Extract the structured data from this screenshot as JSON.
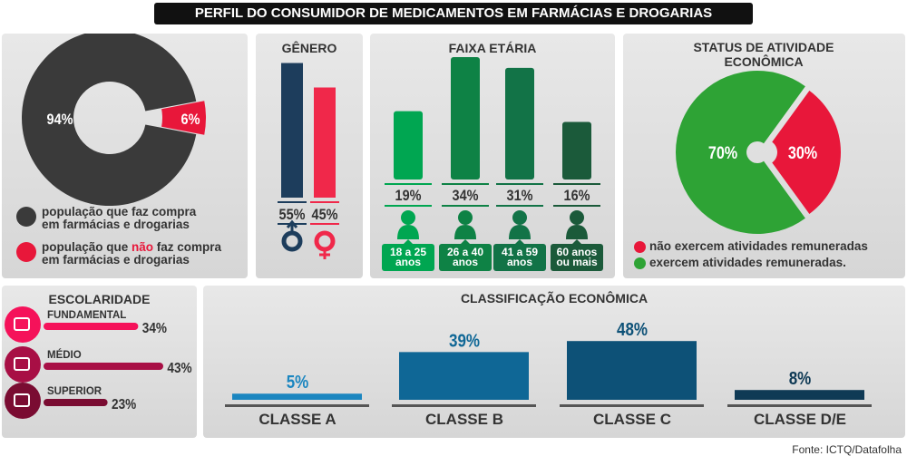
{
  "title": "PERFIL DO CONSUMIDOR DE MEDICAMENTOS EM FARMÁCIAS E DROGARIAS",
  "source": "Fonte: ICTQ/Datafolha",
  "chart_data": [
    {
      "type": "pie",
      "title": "",
      "categories": [
        "população que faz compra em farmácias e drogarias",
        "população que não faz compra em farmácias e drogarias"
      ],
      "values": [
        94,
        6
      ],
      "labels": [
        "94%",
        "6%"
      ],
      "colors": [
        "#3a3a3a",
        "#e8173a"
      ],
      "legend": [
        {
          "pre": "população que faz compra",
          "line2": "em farmácias e drogarias"
        },
        {
          "pre": "população que ",
          "highlight": "não",
          "post": " faz compra",
          "line2": "em farmácias e drogarias"
        }
      ]
    },
    {
      "type": "bar",
      "title": "GÊNERO",
      "categories": [
        "masculino",
        "feminino"
      ],
      "values": [
        55,
        45
      ],
      "labels": [
        "55%",
        "45%"
      ],
      "icons": [
        "male-symbol-icon",
        "female-symbol-icon"
      ],
      "colors": [
        "#1d3d5c",
        "#f0284a"
      ]
    },
    {
      "type": "bar",
      "title": "FAIXA ETÁRIA",
      "categories": [
        "18 a 25 anos",
        "26 a 40 anos",
        "41 a 59 anos",
        "60 anos ou mais"
      ],
      "category_lines": [
        [
          "18 a 25",
          "anos"
        ],
        [
          "26 a 40",
          "anos"
        ],
        [
          "41 a 59",
          "anos"
        ],
        [
          "60 anos",
          "ou mais"
        ]
      ],
      "values": [
        19,
        34,
        31,
        16
      ],
      "labels": [
        "19%",
        "34%",
        "31%",
        "16%"
      ],
      "colors": [
        "#00a651",
        "#0e8245",
        "#127347",
        "#1b5a3a"
      ]
    },
    {
      "type": "pie",
      "title": "STATUS DE ATIVIDADE ECONÔMICA",
      "categories": [
        "exercem atividades remuneradas.",
        "não exercem atividades remuneradas"
      ],
      "values": [
        70,
        30
      ],
      "labels": [
        "70%",
        "30%"
      ],
      "colors": [
        "#2ea335",
        "#e8173a"
      ],
      "legend": [
        "não exercem atividades remuneradas",
        "exercem atividades remuneradas."
      ]
    },
    {
      "type": "bar",
      "orientation": "horizontal",
      "title": "ESCOLARIDADE",
      "categories": [
        "FUNDAMENTAL",
        "MÉDIO",
        "SUPERIOR"
      ],
      "values": [
        34,
        43,
        23
      ],
      "labels": [
        "34%",
        "43%",
        "23%"
      ],
      "icons": [
        "book-icon",
        "diploma-icon",
        "graduation-cap-icon"
      ],
      "colors": [
        "#f5125a",
        "#a80f45",
        "#7a0c32"
      ]
    },
    {
      "type": "bar",
      "title": "CLASSIFICAÇÃO ECONÔMICA",
      "categories": [
        "CLASSE A",
        "CLASSE B",
        "CLASSE C",
        "CLASSE D/E"
      ],
      "values": [
        5,
        39,
        48,
        8
      ],
      "labels": [
        "5%",
        "39%",
        "48%",
        "8%"
      ],
      "colors": [
        "#1b86c0",
        "#0f6796",
        "#0d5177",
        "#0f3a55"
      ]
    }
  ]
}
